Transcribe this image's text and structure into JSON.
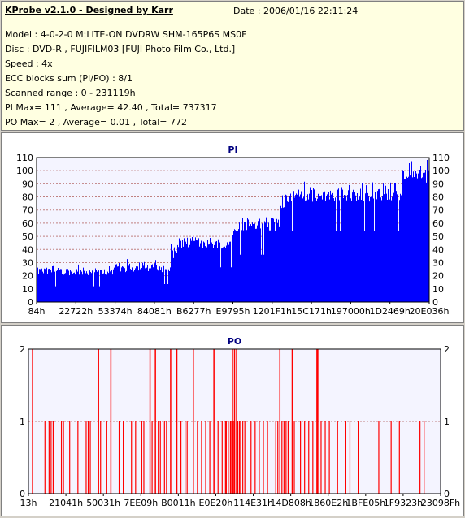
{
  "header": {
    "title": "KProbe v2.1.0 - Designed by Karr",
    "date": "Date : 2006/01/16 22:11:24",
    "lines": [
      "Model : 4-0-2-0 M:LITE-ON DVDRW SHM-165P6S MS0F",
      "Disc : DVD-R , FUJIFILM03 [FUJI Photo Film Co., Ltd.]",
      "Speed : 4x",
      "ECC blocks sum (PI/PO) : 8/1",
      "Scanned range : 0 - 231119h",
      "PI Max= 111 , Average= 42.40 , Total= 737317",
      "PO Max= 2 , Average= 0.01 , Total= 772"
    ]
  },
  "colors": {
    "pi_fill": "#0000ff",
    "po_line": "#ff0000",
    "plot_bg": "#f4f4ff",
    "grid": "#c08080"
  },
  "chart_data": [
    {
      "type": "area",
      "title": "PI",
      "ylim": [
        0,
        110
      ],
      "yticks": [
        0,
        10,
        20,
        30,
        40,
        50,
        60,
        70,
        80,
        90,
        100,
        110
      ],
      "xlim": [
        0,
        231119
      ],
      "xtick_labels": [
        "84h",
        "22722h",
        "53374h",
        "84081h",
        "B6277h",
        "E9795h",
        "1201F1h",
        "15C171h",
        "197000h",
        "1D2469h",
        "20E036h"
      ],
      "grid": true,
      "segments": [
        {
          "x_start": 0,
          "x_end": 0.2,
          "min": 15,
          "max": 30
        },
        {
          "x_start": 0.2,
          "x_end": 0.34,
          "min": 17,
          "max": 33
        },
        {
          "x_start": 0.34,
          "x_end": 0.36,
          "min": 25,
          "max": 45
        },
        {
          "x_start": 0.36,
          "x_end": 0.5,
          "min": 33,
          "max": 55
        },
        {
          "x_start": 0.5,
          "x_end": 0.62,
          "min": 45,
          "max": 70
        },
        {
          "x_start": 0.62,
          "x_end": 0.64,
          "min": 62,
          "max": 88
        },
        {
          "x_start": 0.64,
          "x_end": 0.93,
          "min": 68,
          "max": 92
        },
        {
          "x_start": 0.93,
          "x_end": 1.0,
          "min": 80,
          "max": 111
        }
      ]
    },
    {
      "type": "bar",
      "title": "PO",
      "ylim": [
        0,
        2
      ],
      "yticks": [
        0,
        1,
        2
      ],
      "xlim": [
        0,
        231119
      ],
      "xtick_labels": [
        "13h",
        "21041h",
        "50031h",
        "7EE09h",
        "B0011h",
        "E0E20h",
        "114E31h",
        "14D808h",
        "1860E2h",
        "1BFE05h",
        "1F9323h",
        "23098Fh"
      ],
      "grid": true,
      "events_at_2": [
        0.01,
        0.17,
        0.2,
        0.295,
        0.308,
        0.345,
        0.36,
        0.4,
        0.45,
        0.495,
        0.5,
        0.505,
        0.61,
        0.64,
        0.7,
        0.702
      ],
      "events_at_1": [
        0.04,
        0.05,
        0.055,
        0.06,
        0.08,
        0.085,
        0.1,
        0.12,
        0.14,
        0.145,
        0.15,
        0.175,
        0.19,
        0.22,
        0.23,
        0.25,
        0.26,
        0.275,
        0.28,
        0.3,
        0.315,
        0.32,
        0.33,
        0.335,
        0.37,
        0.38,
        0.385,
        0.41,
        0.42,
        0.43,
        0.44,
        0.46,
        0.47,
        0.478,
        0.48,
        0.485,
        0.49,
        0.493,
        0.497,
        0.5,
        0.508,
        0.512,
        0.515,
        0.52,
        0.525,
        0.54,
        0.55,
        0.56,
        0.57,
        0.58,
        0.6,
        0.605,
        0.615,
        0.62,
        0.625,
        0.63,
        0.645,
        0.66,
        0.67,
        0.68,
        0.69,
        0.71,
        0.72,
        0.73,
        0.75,
        0.77,
        0.78,
        0.8,
        0.85,
        0.88,
        0.9,
        0.95,
        0.96
      ]
    }
  ]
}
